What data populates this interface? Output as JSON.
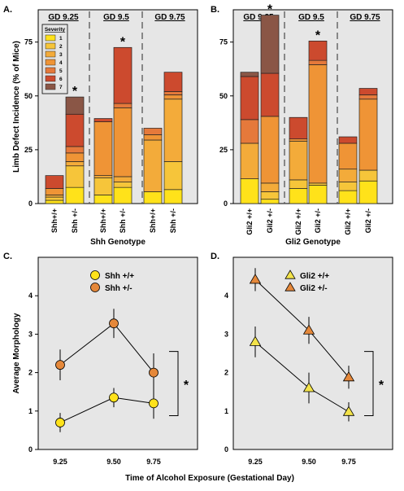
{
  "panel_labels": [
    "A.",
    "B.",
    "C.",
    "D."
  ],
  "colors": {
    "sev": [
      "#ffe21a",
      "#f6c53a",
      "#f3ab3a",
      "#ef9436",
      "#e5793b",
      "#cc4a2e",
      "#8a5646"
    ],
    "frame_bg": "#e6e6e6",
    "shh_wt": "#ffe21a",
    "shh_het": "#e5883a",
    "gli_wt": "#f3e34a",
    "gli_het": "#e5883a"
  },
  "chart_data": [
    {
      "type": "bar",
      "stacked": true,
      "panel": "A.",
      "ylabel": "Limb Defect Incidence (% of Mice)",
      "xlabel": "Shh Genotype",
      "ylim": [
        0,
        90
      ],
      "yticks": [
        "0",
        "25",
        "50",
        "75"
      ],
      "groups": [
        "GD 9.25",
        "GD 9.5",
        "GD 9.75"
      ],
      "legend": {
        "title": "Severity",
        "entries": [
          "1",
          "2",
          "3",
          "4",
          "5",
          "6",
          "7"
        ]
      },
      "categories": [
        "Shh+/+",
        "Shh +/-",
        "Shh+/+",
        "Shh +/-",
        "Shh+/+",
        "Shh +/-"
      ],
      "stacks": [
        [
          1.5,
          1.5,
          1,
          3,
          0,
          6,
          0
        ],
        [
          7.5,
          10,
          2,
          4,
          3,
          15,
          8
        ],
        [
          4,
          8,
          1,
          25,
          0,
          1.5,
          0
        ],
        [
          7.5,
          2.5,
          2.5,
          32,
          2,
          26,
          0
        ],
        [
          5.5,
          0,
          24,
          2.5,
          3,
          0,
          0
        ],
        [
          6.5,
          13,
          29,
          2,
          1.5,
          9,
          0
        ]
      ],
      "annotations": [
        {
          "text": "*",
          "category": "Shh +/-",
          "group": "GD 9.25"
        },
        {
          "text": "*",
          "category": "Shh +/-",
          "group": "GD 9.5"
        }
      ]
    },
    {
      "type": "bar",
      "stacked": true,
      "panel": "B.",
      "xlabel": "Gli2 Genotype",
      "ylim": [
        0,
        90
      ],
      "yticks": [
        "0",
        "25",
        "50",
        "75"
      ],
      "groups": [
        "GD 9.25",
        "GD 9.5",
        "GD 9.75"
      ],
      "categories": [
        "Gli2 +/+",
        "Gli2 +/-",
        "Gli2 +/+",
        "Gli2 +/-",
        "Gli2 +/+",
        "Gli2 +/-"
      ],
      "stacks": [
        [
          11.5,
          0,
          16.5,
          0,
          11,
          20,
          2
        ],
        [
          2,
          3.5,
          4,
          31,
          0,
          20,
          27
        ],
        [
          7,
          4,
          18,
          1,
          0,
          10,
          0
        ],
        [
          8.5,
          1,
          0,
          55,
          2,
          9,
          0
        ],
        [
          6,
          4,
          6,
          12,
          0,
          3,
          0
        ],
        [
          10.5,
          5,
          0,
          33,
          2,
          3,
          0
        ]
      ],
      "annotations": [
        {
          "text": "*",
          "category": "Gli2 +/-",
          "group": "GD 9.25"
        },
        {
          "text": "*",
          "category": "Gli2 +/-",
          "group": "GD 9.5"
        }
      ]
    },
    {
      "type": "line",
      "panel": "C.",
      "ylabel": "Average Morphology",
      "xlabel": "Time of Alcohol Exposure (Gestational Day)",
      "x": [
        9.25,
        9.5,
        9.75
      ],
      "xticks": [
        "9.25",
        "9.50",
        "9.75"
      ],
      "yticks": [
        "0",
        "1",
        "2",
        "3",
        "4"
      ],
      "ylim": [
        0,
        5
      ],
      "marker": "circle",
      "series": [
        {
          "name": "Shh +/+",
          "values": [
            0.7,
            1.35,
            1.2
          ],
          "err": [
            0.25,
            0.25,
            0.4
          ]
        },
        {
          "name": "Shh +/-",
          "values": [
            2.2,
            3.28,
            2.0
          ],
          "err": [
            0.4,
            0.38,
            0.5
          ]
        }
      ],
      "significance": "*"
    },
    {
      "type": "line",
      "panel": "D.",
      "x": [
        9.25,
        9.5,
        9.75
      ],
      "xticks": [
        "9.25",
        "9.50",
        "9.75"
      ],
      "yticks": [
        "0",
        "1",
        "2",
        "3",
        "4"
      ],
      "ylim": [
        0,
        5
      ],
      "marker": "triangle",
      "series": [
        {
          "name": "Gli2 +/+",
          "values": [
            2.8,
            1.6,
            0.98
          ],
          "err": [
            0.4,
            0.4,
            0.25
          ]
        },
        {
          "name": "Gli2 +/-",
          "values": [
            4.42,
            3.1,
            1.88
          ],
          "err": [
            0.3,
            0.35,
            0.3
          ]
        }
      ],
      "significance": "*"
    }
  ]
}
